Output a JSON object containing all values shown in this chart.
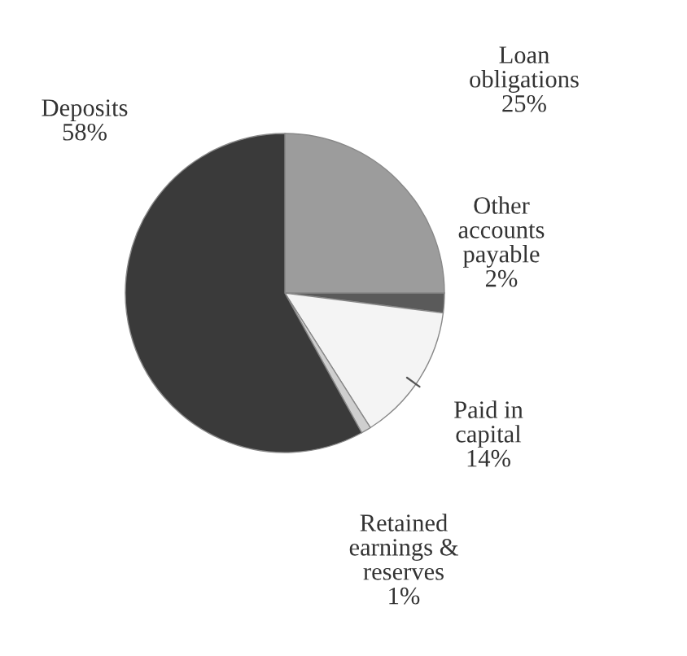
{
  "chart_data": {
    "type": "pie",
    "categories": [
      "Loan obligations",
      "Other accounts payable",
      "Paid in capital",
      "Retained earnings & reserves",
      "Deposits"
    ],
    "values": [
      25,
      2,
      14,
      1,
      58
    ],
    "colors": [
      "#9c9c9c",
      "#5a5a5a",
      "#f4f4f4",
      "#cfcfcf",
      "#3a3a3a"
    ],
    "value_labels": [
      "25%",
      "2%",
      "14%",
      "1%",
      "58%"
    ]
  }
}
